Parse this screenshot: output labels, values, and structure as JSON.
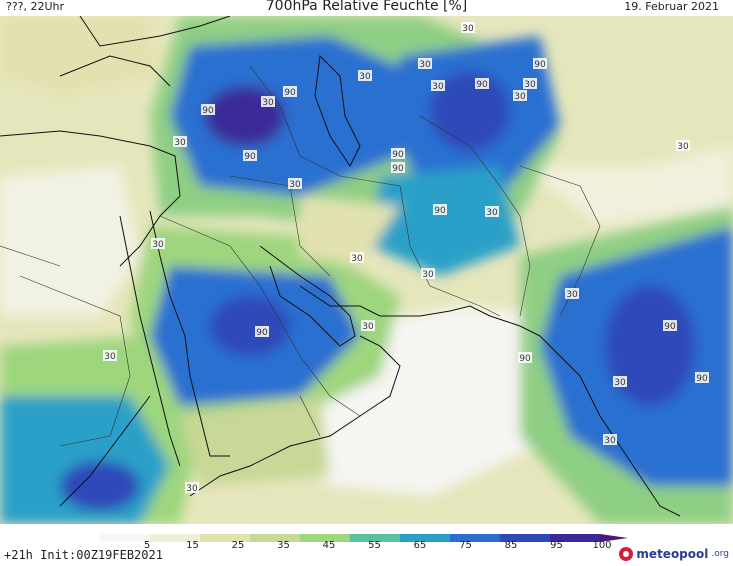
{
  "header": {
    "left": "???, 22Uhr",
    "title": "700hPa Relative Feuchte [%]",
    "date": "19. Februar 2021"
  },
  "footer": {
    "run": "+21h Init:00Z19FEB2021",
    "brand": "meteopool",
    "brand_tld": ".org"
  },
  "colorbar": {
    "labels": [
      "5",
      "15",
      "25",
      "35",
      "45",
      "55",
      "65",
      "75",
      "85",
      "95",
      "100"
    ],
    "colors": [
      "#f7f7f7",
      "#f0f0d8",
      "#e2e2b0",
      "#c8d896",
      "#9ed67e",
      "#58c2a0",
      "#2aa0c8",
      "#2a6fd0",
      "#2e48b8",
      "#3a2a98",
      "#4a1a78"
    ]
  },
  "contour_labels": [
    {
      "text": "30"
    },
    {
      "text": "30"
    },
    {
      "text": "30"
    },
    {
      "text": "30"
    },
    {
      "text": "90"
    },
    {
      "text": "30"
    },
    {
      "text": "90"
    },
    {
      "text": "30"
    },
    {
      "text": "90"
    },
    {
      "text": "30"
    },
    {
      "text": "90"
    },
    {
      "text": "90"
    },
    {
      "text": "30"
    },
    {
      "text": "90"
    },
    {
      "text": "90"
    },
    {
      "text": "30"
    },
    {
      "text": "90"
    },
    {
      "text": "30"
    },
    {
      "text": "30"
    },
    {
      "text": "30"
    },
    {
      "text": "30"
    },
    {
      "text": "30"
    },
    {
      "text": "30"
    },
    {
      "text": "90"
    },
    {
      "text": "30"
    },
    {
      "text": "90"
    },
    {
      "text": "30"
    },
    {
      "text": "90"
    },
    {
      "text": "30"
    },
    {
      "text": "90"
    },
    {
      "text": "30"
    },
    {
      "text": "30"
    }
  ]
}
